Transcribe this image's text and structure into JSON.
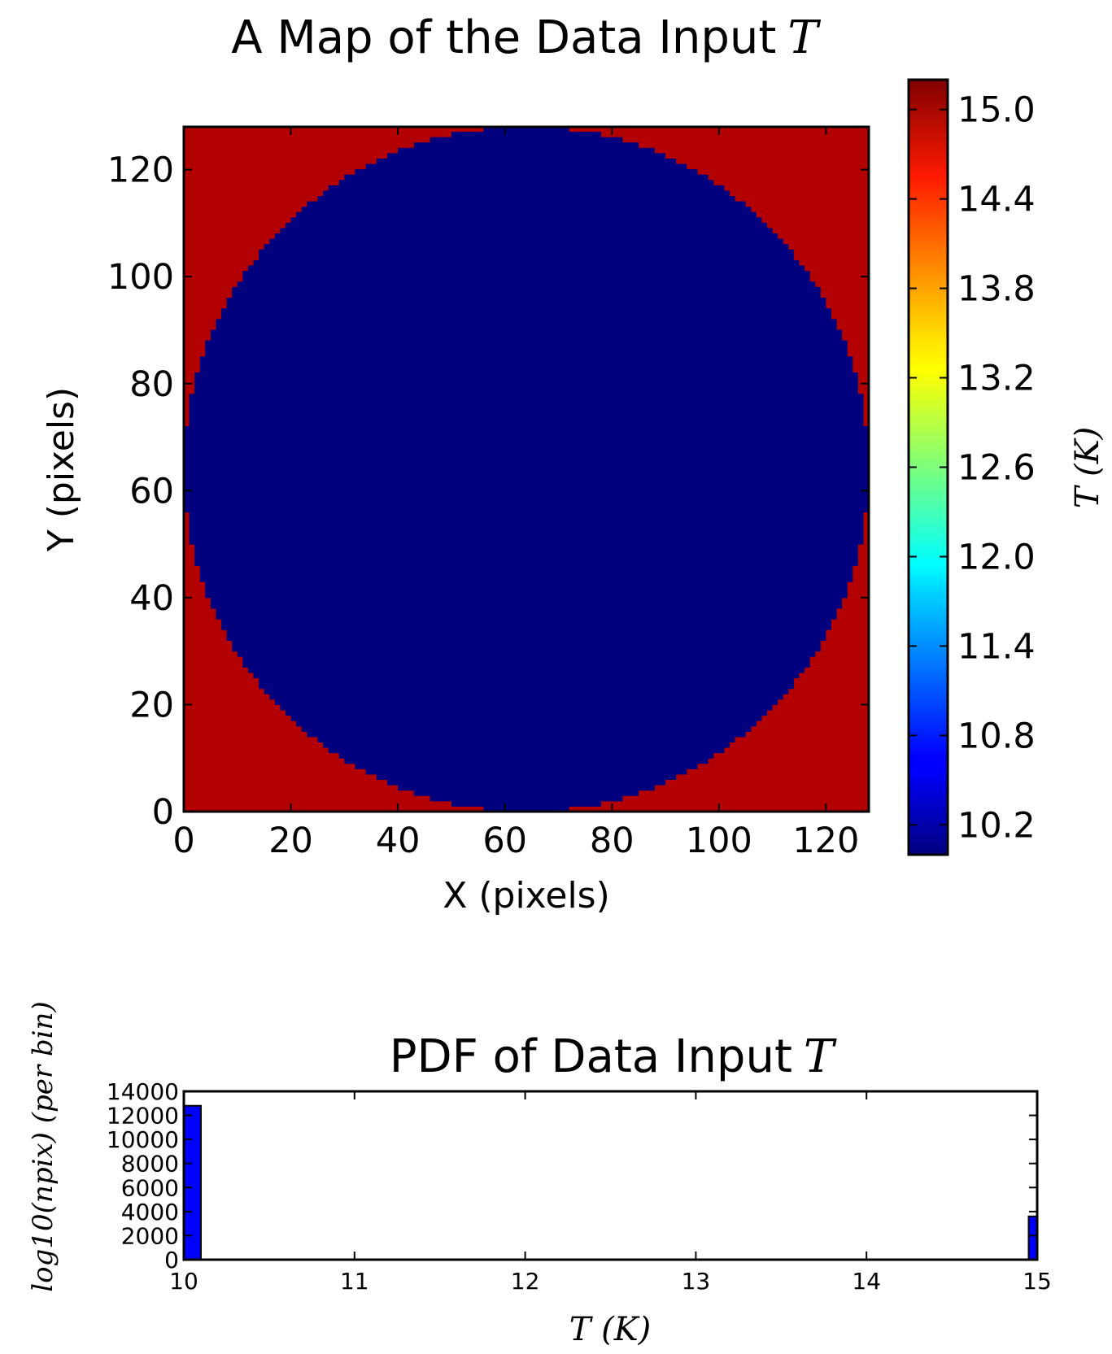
{
  "chart_data": [
    {
      "type": "heatmap",
      "title": "A Map of the Data Input",
      "title_symbol": "T",
      "xlabel": "X (pixels)",
      "ylabel": "Y (pixels)",
      "xlim": [
        0,
        128
      ],
      "ylim": [
        0,
        128
      ],
      "xticks": [
        0,
        20,
        40,
        60,
        80,
        100,
        120
      ],
      "yticks": [
        0,
        20,
        40,
        60,
        80,
        100,
        120
      ],
      "grid_size": 128,
      "image": {
        "description_values": "disk of T=10 centered in the map, T=15 outside",
        "inside_value": 10.0,
        "outside_value": 15.0,
        "disk_center": [
          64,
          64
        ],
        "disk_radius": 64
      },
      "colormap": "jet",
      "colors": {
        "inside": "#00007f",
        "outside": "#b30000"
      },
      "colorbar": {
        "label": "T (K)",
        "vmin": 10.0,
        "vmax": 15.2,
        "ticks": [
          10.2,
          10.8,
          11.4,
          12.0,
          12.6,
          13.2,
          13.8,
          14.4,
          15.0
        ],
        "tick_labels": [
          "10.2",
          "10.8",
          "11.4",
          "12.0",
          "12.6",
          "13.2",
          "13.8",
          "14.4",
          "15.0"
        ]
      }
    },
    {
      "type": "bar",
      "title": "PDF of Data Input",
      "title_symbol": "T",
      "xlabel": "T (K)",
      "ylabel": "log10(npix) (per bin)",
      "xlim": [
        10,
        15
      ],
      "ylim": [
        0,
        14000
      ],
      "xticks": [
        10,
        11,
        12,
        13,
        14,
        15
      ],
      "yticks": [
        0,
        2000,
        4000,
        6000,
        8000,
        10000,
        12000,
        14000
      ],
      "bars": [
        {
          "x0": 10.0,
          "x1": 10.1,
          "value": 12800
        },
        {
          "x0": 14.95,
          "x1": 15.0,
          "value": 3600
        }
      ],
      "bar_color": "#0000ff"
    }
  ]
}
